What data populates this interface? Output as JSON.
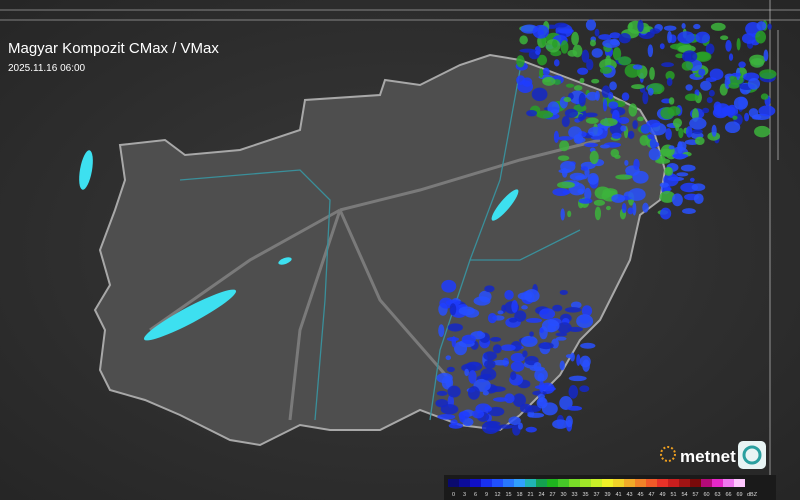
{
  "header": {
    "title": "Magyar Kompozit CMax / VMax",
    "timestamp": "2025.11.16 06:00"
  },
  "logo": {
    "text": "metnet"
  },
  "legend": {
    "unit": "dBZ",
    "entries": [
      {
        "value": 0,
        "color": "#0a0a6e"
      },
      {
        "value": 3,
        "color": "#0c0c9a"
      },
      {
        "value": 6,
        "color": "#1010c8"
      },
      {
        "value": 9,
        "color": "#1830f0"
      },
      {
        "value": 12,
        "color": "#2050ff"
      },
      {
        "value": 15,
        "color": "#2878ff"
      },
      {
        "value": 18,
        "color": "#30a0ff"
      },
      {
        "value": 21,
        "color": "#20b4b4"
      },
      {
        "value": 24,
        "color": "#14a050"
      },
      {
        "value": 27,
        "color": "#1eb41e"
      },
      {
        "value": 30,
        "color": "#46c828"
      },
      {
        "value": 33,
        "color": "#78dc28"
      },
      {
        "value": 35,
        "color": "#a0e628"
      },
      {
        "value": 37,
        "color": "#c8f028"
      },
      {
        "value": 39,
        "color": "#f0f028"
      },
      {
        "value": 41,
        "color": "#f0d228"
      },
      {
        "value": 43,
        "color": "#f0aa28"
      },
      {
        "value": 45,
        "color": "#f08228"
      },
      {
        "value": 47,
        "color": "#f05a28"
      },
      {
        "value": 49,
        "color": "#e63228"
      },
      {
        "value": 51,
        "color": "#c81e1e"
      },
      {
        "value": 54,
        "color": "#a01414"
      },
      {
        "value": 57,
        "color": "#780a0a"
      },
      {
        "value": 60,
        "color": "#b40a78"
      },
      {
        "value": 63,
        "color": "#e628c8"
      },
      {
        "value": 66,
        "color": "#f078f0"
      },
      {
        "value": 69,
        "color": "#ffc8ff"
      }
    ]
  }
}
